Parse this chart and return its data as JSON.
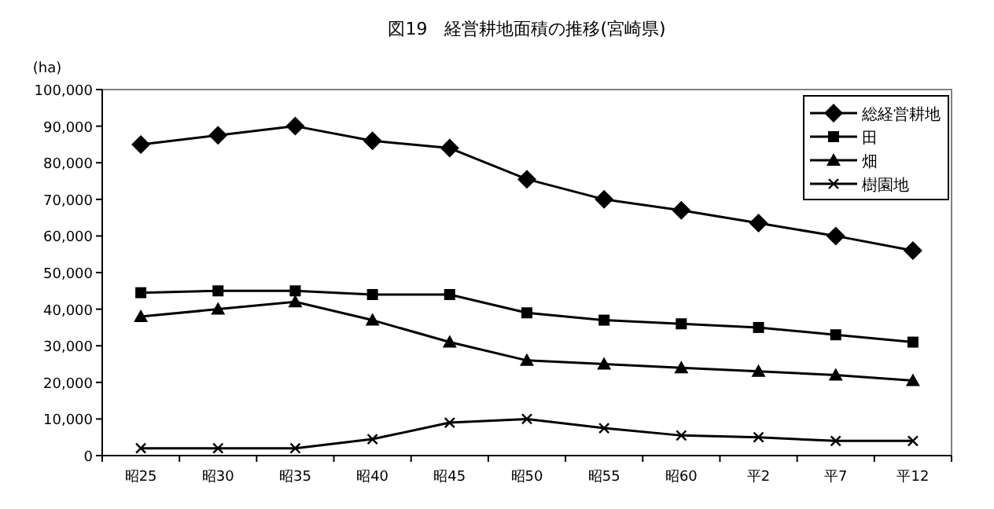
{
  "chart_data": {
    "type": "line",
    "title": "図19　経営耕地面積の推移(宮崎県)",
    "ylabel": "(ha)",
    "categories": [
      "昭25",
      "昭30",
      "昭35",
      "昭40",
      "昭45",
      "昭50",
      "昭55",
      "昭60",
      "平2",
      "平7",
      "平12"
    ],
    "series": [
      {
        "name": "総経営耕地",
        "color": "#000000",
        "marker": "diamond",
        "values": [
          85000,
          87500,
          90000,
          86000,
          84000,
          75500,
          70000,
          67000,
          63500,
          60000,
          56000
        ]
      },
      {
        "name": "田",
        "color": "#000000",
        "marker": "square",
        "values": [
          44500,
          45000,
          45000,
          44000,
          44000,
          39000,
          37000,
          36000,
          35000,
          33000,
          31000
        ]
      },
      {
        "name": "畑",
        "color": "#000000",
        "marker": "triangle",
        "values": [
          38000,
          40000,
          42000,
          37000,
          31000,
          26000,
          25000,
          24000,
          23000,
          22000,
          20500
        ]
      },
      {
        "name": "樹園地",
        "color": "#000000",
        "marker": "cross",
        "values": [
          2000,
          2000,
          2000,
          4500,
          9000,
          10000,
          7500,
          5500,
          5000,
          4000,
          4000
        ]
      }
    ],
    "ylim": [
      0,
      100000
    ],
    "yticks": [
      {
        "value": 0,
        "label": "0"
      },
      {
        "value": 10000,
        "label": "10,000"
      },
      {
        "value": 20000,
        "label": "20,000"
      },
      {
        "value": 30000,
        "label": "30,000"
      },
      {
        "value": 40000,
        "label": "40,000"
      },
      {
        "value": 50000,
        "label": "50,000"
      },
      {
        "value": 60000,
        "label": "60,000"
      },
      {
        "value": 70000,
        "label": "70,000"
      },
      {
        "value": 80000,
        "label": "80,000"
      },
      {
        "value": 90000,
        "label": "90,000"
      },
      {
        "value": 100000,
        "label": "100,000"
      }
    ],
    "grid": false,
    "legend": "top right"
  }
}
